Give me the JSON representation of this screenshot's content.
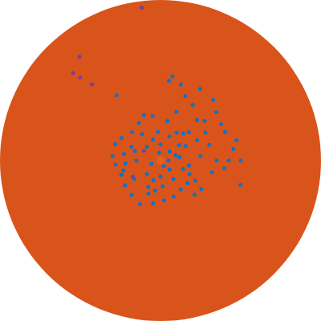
{
  "chart_data": {
    "type": "polar_scatter",
    "background": "#d9541a",
    "rlim": [
      0,
      1
    ],
    "grid": false,
    "tick_labels": false,
    "marker": "circle",
    "series": [
      {
        "color": "#0b74c8",
        "r": [
          0.05,
          0.1,
          0.15,
          0.2,
          0.25,
          0.28,
          0.3,
          0.27,
          0.25,
          0.28,
          0.3,
          0.3,
          0.28,
          0.26,
          0.27,
          0.28,
          0.3,
          0.27,
          0.25,
          0.24,
          0.22,
          0.22,
          0.2,
          0.18,
          0.08,
          0.1,
          0.12,
          0.15,
          0.12,
          0.1,
          0.08,
          0.05,
          0.06,
          0.04,
          0.18,
          0.2,
          0.2,
          0.22,
          0.2,
          0.18,
          0.16,
          0.14,
          0.15,
          0.12,
          0.18,
          0.22,
          0.16,
          0.14,
          0.17,
          0.23,
          0.24,
          0.22,
          0.19,
          0.13,
          0.3,
          0.25,
          0.33,
          0.53,
          0.51,
          0.46,
          0.5,
          0.33,
          0.34,
          0.46,
          0.43,
          0.32,
          0.44,
          0.4,
          0.49,
          0.425,
          0.25,
          0.25,
          0.37,
          0.44,
          0.49,
          0.5,
          0.32,
          0.5,
          0.26,
          0.35,
          0.4,
          0.52,
          0.31,
          0.49
        ],
        "theta": [
          0,
          20,
          40,
          60,
          80,
          100,
          110,
          120,
          135,
          150,
          160,
          175,
          185,
          200,
          215,
          230,
          245,
          260,
          275,
          290,
          305,
          320,
          335,
          350,
          45,
          90,
          135,
          180,
          225,
          270,
          315,
          100,
          200,
          300,
          95,
          125,
          155,
          185,
          215,
          245,
          275,
          305,
          340,
          10,
          30,
          50,
          70,
          110,
          160,
          170,
          195,
          250,
          260,
          250,
          315,
          330,
          32,
          82,
          61,
          9,
          0,
          -13,
          48,
          41,
          69,
          18,
          24,
          60,
          75,
          0,
          6,
          45,
          42,
          31,
          15,
          84,
          72,
          49,
          29,
          0,
          -7,
          -17,
          -35,
          124
        ]
      },
      {
        "color": "#7a3f9c",
        "r": [
          0.72,
          0.64,
          0.82,
          0.77,
          0.96,
          0.12,
          0.2
        ],
        "theta": [
          134,
          132,
          128,
          135,
          97,
          150,
          210
        ]
      },
      {
        "color": "#e8601e",
        "r": [
          0
        ],
        "theta": [
          0
        ]
      }
    ]
  }
}
